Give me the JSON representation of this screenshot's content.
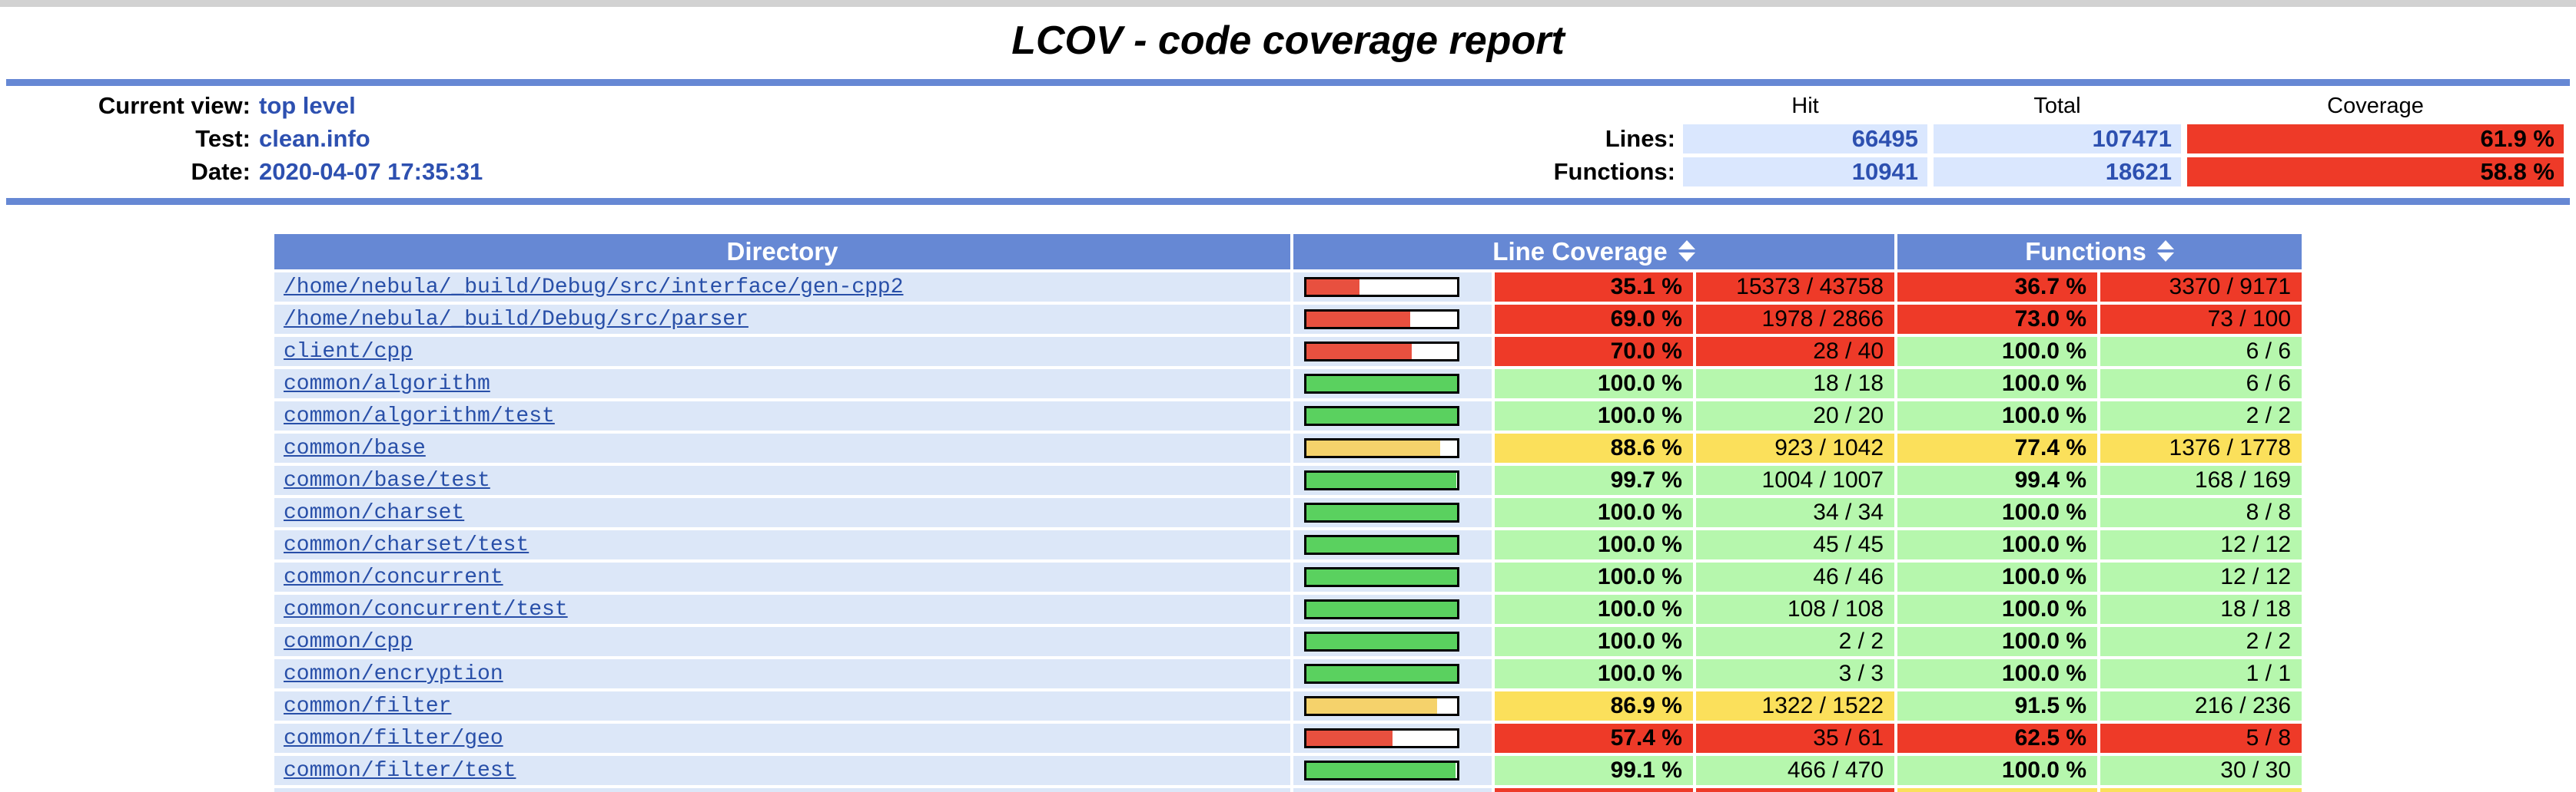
{
  "page": {
    "title": "LCOV - code coverage report"
  },
  "header": {
    "items": [
      {
        "label": "Current view:",
        "value": "top level"
      },
      {
        "label": "Test:",
        "value": "clean.info"
      },
      {
        "label": "Date:",
        "value": "2020-04-07 17:35:31"
      }
    ],
    "stats": {
      "columns": [
        "Hit",
        "Total",
        "Coverage"
      ],
      "rows": [
        {
          "label": "Lines:",
          "hit": "66495",
          "total": "107471",
          "coverage": "61.9 %",
          "coverage_level": "lo"
        },
        {
          "label": "Functions:",
          "hit": "10941",
          "total": "18621",
          "coverage": "58.8 %",
          "coverage_level": "lo"
        }
      ]
    }
  },
  "table": {
    "headers": {
      "directory": "Directory",
      "line_coverage": "Line Coverage",
      "functions": "Functions"
    },
    "sort_icon": "updown-arrows",
    "rows": [
      {
        "dir": "/home/nebula/_build/Debug/src/interface/gen-cpp2",
        "bar": 35.1,
        "bar_level": "lo",
        "line_pct": "35.1 %",
        "line_level": "lo",
        "line_ratio": "15373 / 43758",
        "func_pct": "36.7 %",
        "func_level": "lo",
        "func_ratio": "3370 / 9171"
      },
      {
        "dir": "/home/nebula/_build/Debug/src/parser",
        "bar": 69.0,
        "bar_level": "lo",
        "line_pct": "69.0 %",
        "line_level": "lo",
        "line_ratio": "1978 / 2866",
        "func_pct": "73.0 %",
        "func_level": "lo",
        "func_ratio": "73 / 100"
      },
      {
        "dir": "client/cpp",
        "bar": 70.0,
        "bar_level": "lo",
        "line_pct": "70.0 %",
        "line_level": "lo",
        "line_ratio": "28 / 40",
        "func_pct": "100.0 %",
        "func_level": "hi",
        "func_ratio": "6 / 6"
      },
      {
        "dir": "common/algorithm",
        "bar": 100,
        "bar_level": "hi",
        "line_pct": "100.0 %",
        "line_level": "hi",
        "line_ratio": "18 / 18",
        "func_pct": "100.0 %",
        "func_level": "hi",
        "func_ratio": "6 / 6"
      },
      {
        "dir": "common/algorithm/test",
        "bar": 100,
        "bar_level": "hi",
        "line_pct": "100.0 %",
        "line_level": "hi",
        "line_ratio": "20 / 20",
        "func_pct": "100.0 %",
        "func_level": "hi",
        "func_ratio": "2 / 2"
      },
      {
        "dir": "common/base",
        "bar": 88.6,
        "bar_level": "med",
        "line_pct": "88.6 %",
        "line_level": "med",
        "line_ratio": "923 / 1042",
        "func_pct": "77.4 %",
        "func_level": "med",
        "func_ratio": "1376 / 1778"
      },
      {
        "dir": "common/base/test",
        "bar": 99.7,
        "bar_level": "hi",
        "line_pct": "99.7 %",
        "line_level": "hi",
        "line_ratio": "1004 / 1007",
        "func_pct": "99.4 %",
        "func_level": "hi",
        "func_ratio": "168 / 169"
      },
      {
        "dir": "common/charset",
        "bar": 100,
        "bar_level": "hi",
        "line_pct": "100.0 %",
        "line_level": "hi",
        "line_ratio": "34 / 34",
        "func_pct": "100.0 %",
        "func_level": "hi",
        "func_ratio": "8 / 8"
      },
      {
        "dir": "common/charset/test",
        "bar": 100,
        "bar_level": "hi",
        "line_pct": "100.0 %",
        "line_level": "hi",
        "line_ratio": "45 / 45",
        "func_pct": "100.0 %",
        "func_level": "hi",
        "func_ratio": "12 / 12"
      },
      {
        "dir": "common/concurrent",
        "bar": 100,
        "bar_level": "hi",
        "line_pct": "100.0 %",
        "line_level": "hi",
        "line_ratio": "46 / 46",
        "func_pct": "100.0 %",
        "func_level": "hi",
        "func_ratio": "12 / 12"
      },
      {
        "dir": "common/concurrent/test",
        "bar": 100,
        "bar_level": "hi",
        "line_pct": "100.0 %",
        "line_level": "hi",
        "line_ratio": "108 / 108",
        "func_pct": "100.0 %",
        "func_level": "hi",
        "func_ratio": "18 / 18"
      },
      {
        "dir": "common/cpp",
        "bar": 100,
        "bar_level": "hi",
        "line_pct": "100.0 %",
        "line_level": "hi",
        "line_ratio": "2 / 2",
        "func_pct": "100.0 %",
        "func_level": "hi",
        "func_ratio": "2 / 2"
      },
      {
        "dir": "common/encryption",
        "bar": 100,
        "bar_level": "hi",
        "line_pct": "100.0 %",
        "line_level": "hi",
        "line_ratio": "3 / 3",
        "func_pct": "100.0 %",
        "func_level": "hi",
        "func_ratio": "1 / 1"
      },
      {
        "dir": "common/filter",
        "bar": 86.9,
        "bar_level": "med",
        "line_pct": "86.9 %",
        "line_level": "med",
        "line_ratio": "1322 / 1522",
        "func_pct": "91.5 %",
        "func_level": "hi",
        "func_ratio": "216 / 236"
      },
      {
        "dir": "common/filter/geo",
        "bar": 57.4,
        "bar_level": "lo",
        "line_pct": "57.4 %",
        "line_level": "lo",
        "line_ratio": "35 / 61",
        "func_pct": "62.5 %",
        "func_level": "lo",
        "func_ratio": "5 / 8"
      },
      {
        "dir": "common/filter/test",
        "bar": 99.1,
        "bar_level": "hi",
        "line_pct": "99.1 %",
        "line_level": "hi",
        "line_ratio": "466 / 470",
        "func_pct": "100.0 %",
        "func_level": "hi",
        "func_ratio": "30 / 30"
      },
      {
        "dir": "",
        "bar": null,
        "bar_level": "hi",
        "line_pct": "",
        "line_level": "lo",
        "line_ratio": "",
        "func_pct": "",
        "func_level": "med",
        "func_ratio": "",
        "partial": true
      }
    ]
  },
  "colors": {
    "accent_blue": "#6688d4",
    "top_strip": "#d2d2d2",
    "row_bg": "#dce7f8",
    "stat_bg": "#dae7fe",
    "link_blue": "#284fa8",
    "value_blue": "#2d50b0",
    "cell_lo": "#ee3a28",
    "cell_med": "#fbe05b",
    "cell_hi": "#b6f7ad",
    "bar_lo": "#e8503f",
    "bar_med": "#f5d26b",
    "bar_hi": "#5ad15f"
  }
}
